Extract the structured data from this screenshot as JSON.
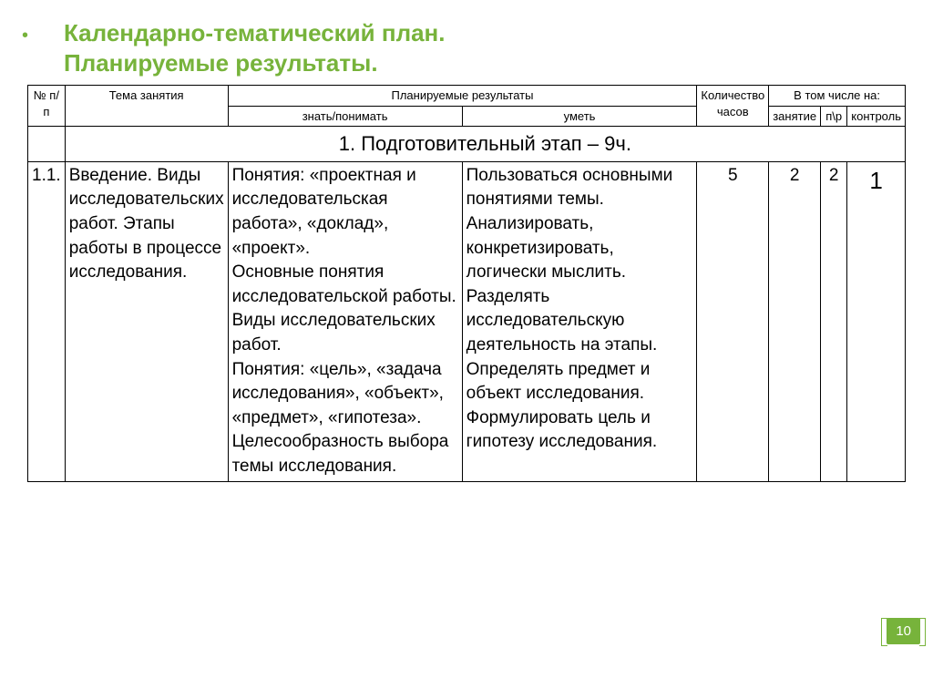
{
  "colors": {
    "accent": "#77b33b",
    "border": "#000000",
    "text": "#000000",
    "background": "#ffffff"
  },
  "title": {
    "line1": "Календарно-тематический план.",
    "line2": "Планируемые результаты."
  },
  "header": {
    "num": "№ п/п",
    "topic": "Тема занятия",
    "results": "Планируемые результаты",
    "know": "знать/понимать",
    "can": "уметь",
    "hours": "Количество часов",
    "including": "В том числе на:",
    "lesson": "занятие",
    "pr": "п\\р",
    "control": "контроль"
  },
  "section": {
    "label": "1.   Подготовительный этап – 9ч."
  },
  "row1": {
    "num": "1.1.",
    "topic": "Введение. Виды исследовательских работ. Этапы работы в процессе исследования.",
    "know": "Понятия: «проектная и исследовательская работа», «доклад», «проект».\nОсновные понятия исследовательской работы.\nВиды исследовательских работ.\nПонятия: «цель», «задача исследования», «объект», «предмет», «гипотеза».\nЦелесообразность выбора темы исследования.",
    "can": "Пользоваться основными понятиями темы.\nАнализировать, конкретизировать, логически мыслить.\nРазделять исследовательскую деятельность на этапы.\nОпределять предмет и объект исследования.\nФормулировать цель и гипотезу исследования.",
    "hours": "5",
    "lesson": "2",
    "pr": "2",
    "control": "1"
  },
  "page_number": "10"
}
